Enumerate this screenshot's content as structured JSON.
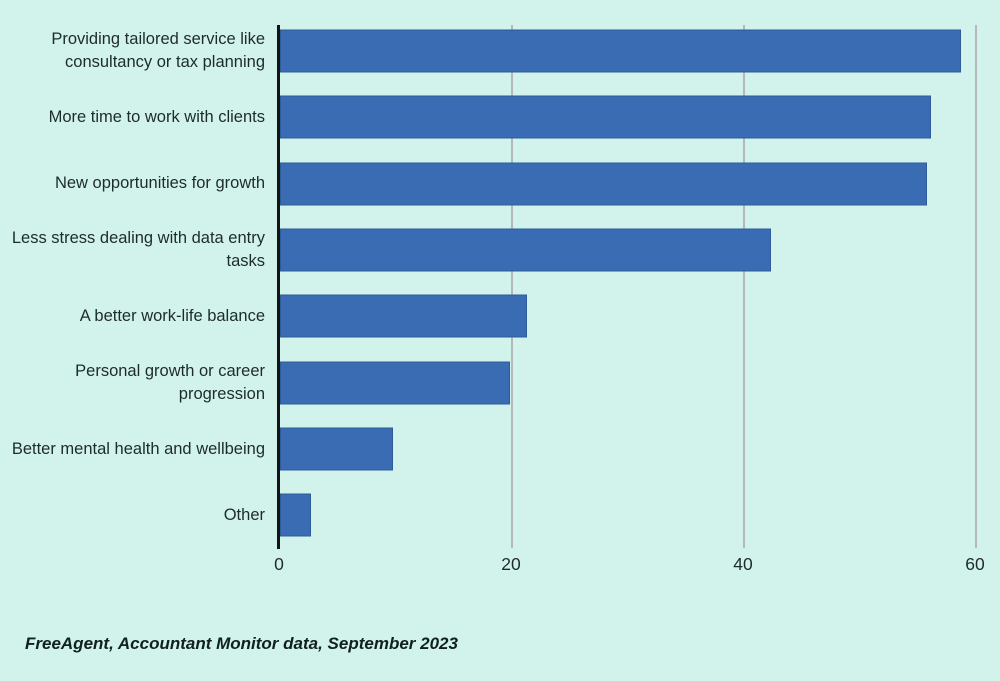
{
  "page": {
    "background_color": "#d2f3ec",
    "text_color": "#1e2b2b"
  },
  "chart_data": {
    "type": "bar",
    "orientation": "horizontal",
    "title": "",
    "xlabel": "",
    "ylabel": "",
    "categories": [
      "Providing tailored service like consultancy or tax planning",
      "More time to work with clients",
      "New opportunities for growth",
      "Less stress dealing with data entry tasks",
      "A better work-life balance",
      "Personal growth or career progression",
      "Better mental health and wellbeing",
      "Other"
    ],
    "values": [
      58.7,
      56.1,
      55.8,
      42.3,
      21.3,
      19.8,
      9.7,
      2.7
    ],
    "xticks": [
      0,
      20,
      40,
      60
    ],
    "xlim": [
      0,
      61.2
    ],
    "grid": "vertical-only",
    "legend": "none",
    "bar_color": "#3a6cb3",
    "gridline_color": "#b5bab9",
    "axis_color": "#141414"
  },
  "footer": {
    "source_note": "FreeAgent, Accountant Monitor data, September 2023"
  }
}
